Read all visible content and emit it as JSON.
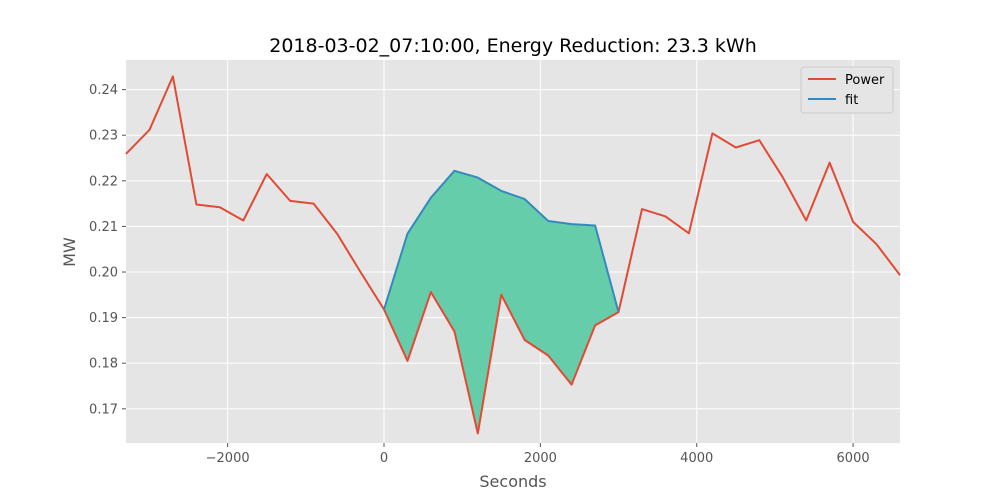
{
  "chart_data": {
    "type": "line",
    "title": "2018-03-02_07:10:00, Energy Reduction: 23.3 kWh",
    "xlabel": "Seconds",
    "ylabel": "MW",
    "xlim": [
      -3300,
      6600
    ],
    "ylim": [
      0.1625,
      0.2465
    ],
    "xticks": [
      -2000,
      0,
      2000,
      4000,
      6000
    ],
    "xtick_labels": [
      "−2000",
      "0",
      "2000",
      "4000",
      "6000"
    ],
    "yticks": [
      0.17,
      0.18,
      0.19,
      0.2,
      0.21,
      0.22,
      0.23,
      0.24
    ],
    "ytick_labels": [
      "0.17",
      "0.18",
      "0.19",
      "0.20",
      "0.21",
      "0.22",
      "0.23",
      "0.24"
    ],
    "grid": true,
    "legend_position": "top-right",
    "colors": {
      "plot_bg": "#e5e5e5",
      "grid": "#ffffff",
      "fill": "#66cdaa"
    },
    "series": [
      {
        "name": "Power",
        "color": "#e24a33",
        "x": [
          -3300,
          -3000,
          -2700,
          -2400,
          -2100,
          -1800,
          -1500,
          -1200,
          -900,
          -600,
          -300,
          0,
          300,
          600,
          900,
          1200,
          1500,
          1800,
          2100,
          2400,
          2700,
          3000,
          3300,
          3600,
          3900,
          4200,
          4500,
          4800,
          5100,
          5400,
          5700,
          6000,
          6300,
          6600
        ],
        "y": [
          0.2259,
          0.2312,
          0.2429,
          0.2148,
          0.2142,
          0.2113,
          0.2215,
          0.2156,
          0.215,
          0.2084,
          0.2,
          0.1918,
          0.1805,
          0.1956,
          0.187,
          0.1646,
          0.195,
          0.1851,
          0.1817,
          0.1753,
          0.1883,
          0.1912,
          0.2138,
          0.2122,
          0.2085,
          0.2304,
          0.2273,
          0.2289,
          0.2208,
          0.2113,
          0.224,
          0.211,
          0.2061,
          0.1993
        ]
      },
      {
        "name": "fit",
        "color": "#348abd",
        "x": [
          0,
          300,
          600,
          900,
          1200,
          1500,
          1800,
          2100,
          2400,
          2700,
          3000
        ],
        "y": [
          0.1918,
          0.2084,
          0.2163,
          0.2222,
          0.2207,
          0.2178,
          0.216,
          0.2112,
          0.2105,
          0.2102,
          0.1912
        ]
      }
    ],
    "fill_between": {
      "upper": "fit",
      "lower": "Power",
      "x_range": [
        0,
        3000
      ]
    }
  }
}
